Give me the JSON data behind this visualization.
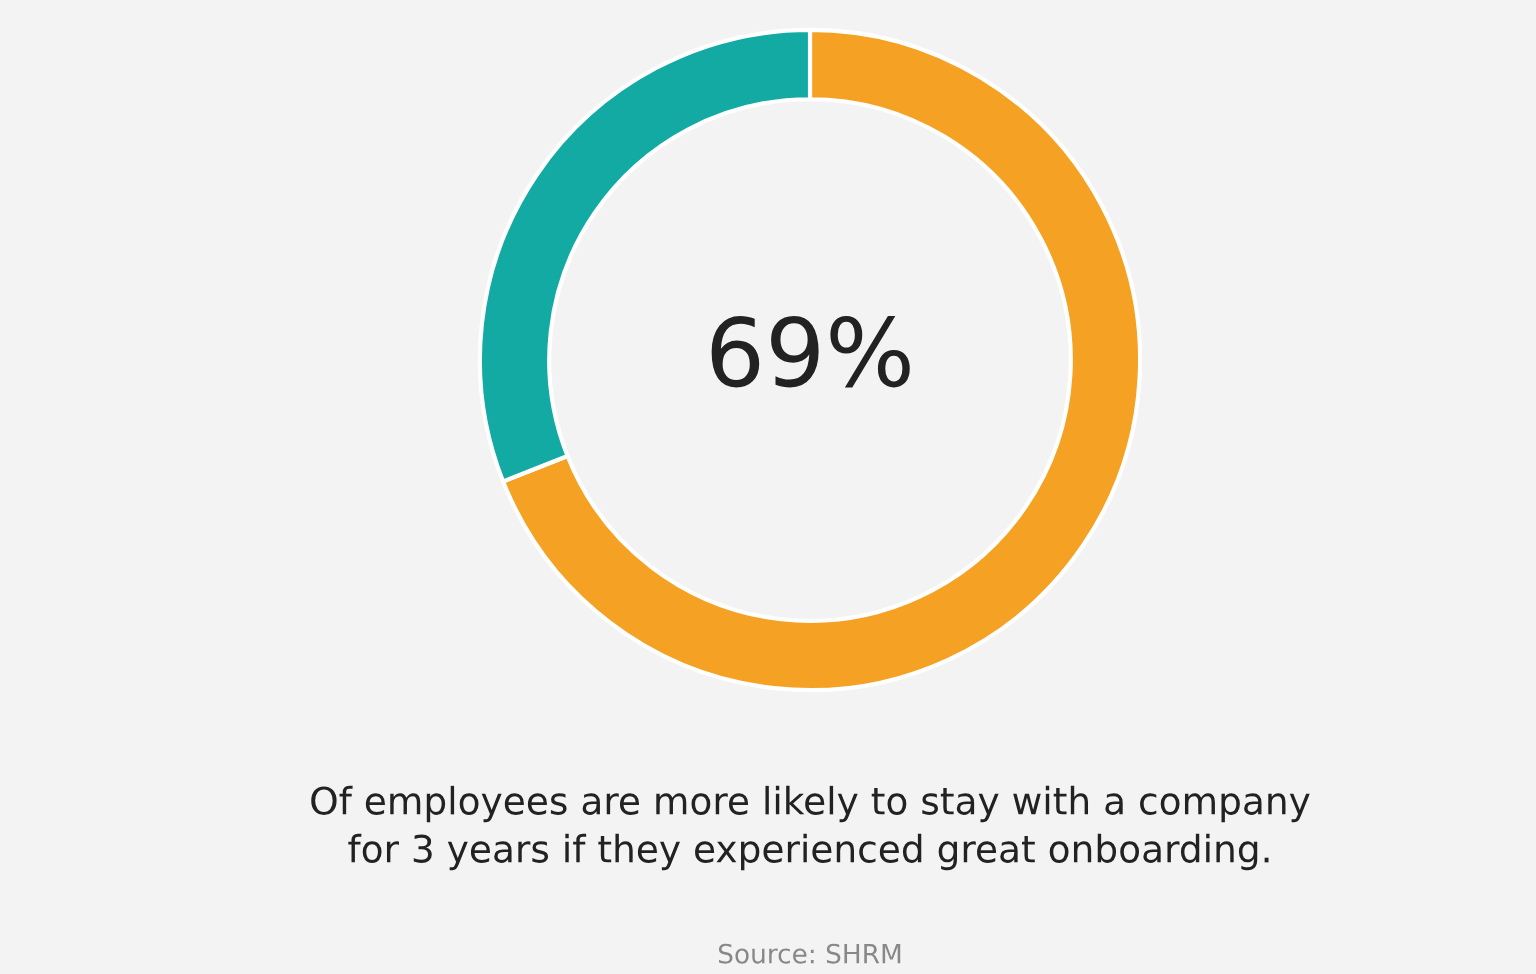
{
  "chart_data": {
    "type": "donut",
    "categories": [
      null,
      null
    ],
    "values": [
      69,
      31
    ],
    "colors": [
      "#f4a124",
      "#13aaa4"
    ],
    "value_labels": [
      "69%",
      null
    ],
    "annotations": [
      "Of employees are more likely to stay with a company",
      "for 3 years if they experienced great onboarding.",
      "Source: SHRM"
    ]
  }
}
